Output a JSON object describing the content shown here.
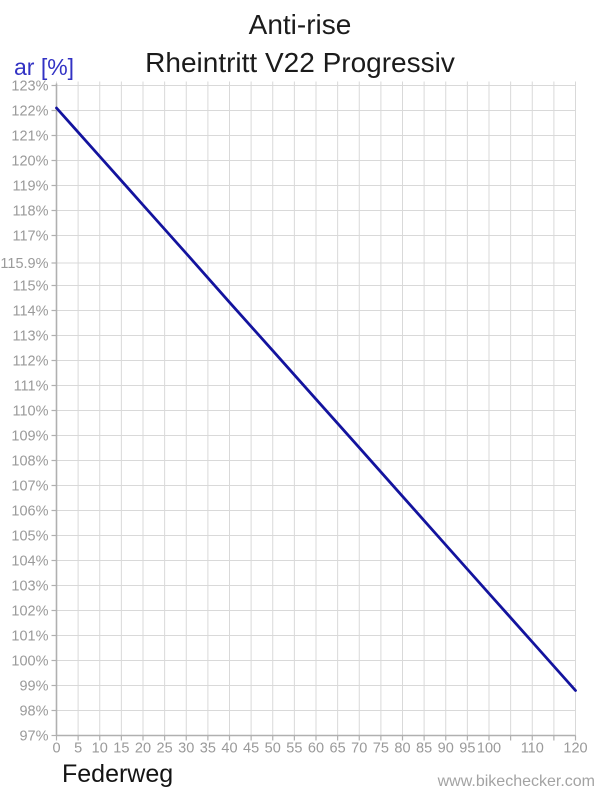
{
  "header": {
    "title": "Anti-rise",
    "subtitle": "Rheintritt V22 Progressiv",
    "y_axis_unit": "ar [%]"
  },
  "footer": {
    "x_axis_name": "Federweg",
    "watermark": "www.bikechecker.com"
  },
  "colors": {
    "line": "#13139e",
    "y_unit_text": "#3232c4",
    "grid": "#d9d9d9",
    "axis": "#b0b0b0",
    "tick_text": "#9a9a9a",
    "title_text": "#1b1b1b",
    "watermark_text": "#a3a3a3"
  },
  "chart_data": {
    "type": "line",
    "title": "Anti-rise",
    "subtitle": "Rheintritt V22 Progressiv",
    "xlabel": "Federweg",
    "ylabel": "ar [%]",
    "xlim": [
      0,
      120
    ],
    "ylim": [
      97,
      123
    ],
    "grid": true,
    "legend": "none",
    "x_ticks": [
      {
        "v": 0,
        "label": "0"
      },
      {
        "v": 5,
        "label": "5"
      },
      {
        "v": 10,
        "label": "10"
      },
      {
        "v": 15,
        "label": "15"
      },
      {
        "v": 20,
        "label": "20"
      },
      {
        "v": 25,
        "label": "25"
      },
      {
        "v": 30,
        "label": "30"
      },
      {
        "v": 35,
        "label": "35"
      },
      {
        "v": 40,
        "label": "40"
      },
      {
        "v": 45,
        "label": "45"
      },
      {
        "v": 50,
        "label": "50"
      },
      {
        "v": 55,
        "label": "55"
      },
      {
        "v": 60,
        "label": "60"
      },
      {
        "v": 65,
        "label": "65"
      },
      {
        "v": 70,
        "label": "70"
      },
      {
        "v": 75,
        "label": "75"
      },
      {
        "v": 80,
        "label": "80"
      },
      {
        "v": 85,
        "label": "85"
      },
      {
        "v": 90,
        "label": "90"
      },
      {
        "v": 95,
        "label": "95"
      },
      {
        "v": 100,
        "label": "100"
      },
      {
        "v": 105,
        "label": ""
      },
      {
        "v": 110,
        "label": "110"
      },
      {
        "v": 115,
        "label": ""
      },
      {
        "v": 120,
        "label": "120"
      }
    ],
    "y_ticks": [
      {
        "v": 123,
        "label": "123%"
      },
      {
        "v": 122,
        "label": "122%"
      },
      {
        "v": 121,
        "label": "121%"
      },
      {
        "v": 120,
        "label": "120%"
      },
      {
        "v": 119,
        "label": "119%"
      },
      {
        "v": 118,
        "label": "118%"
      },
      {
        "v": 117,
        "label": "117%"
      },
      {
        "v": 115.9,
        "label": "115.9%"
      },
      {
        "v": 115,
        "label": "115%"
      },
      {
        "v": 114,
        "label": "114%"
      },
      {
        "v": 113,
        "label": "113%"
      },
      {
        "v": 112,
        "label": "112%"
      },
      {
        "v": 111,
        "label": "111%"
      },
      {
        "v": 110,
        "label": "110%"
      },
      {
        "v": 109,
        "label": "109%"
      },
      {
        "v": 108,
        "label": "108%"
      },
      {
        "v": 107,
        "label": "107%"
      },
      {
        "v": 106,
        "label": "106%"
      },
      {
        "v": 105,
        "label": "105%"
      },
      {
        "v": 104,
        "label": "104%"
      },
      {
        "v": 103,
        "label": "103%"
      },
      {
        "v": 102,
        "label": "102%"
      },
      {
        "v": 101,
        "label": "101%"
      },
      {
        "v": 100,
        "label": "100%"
      },
      {
        "v": 99,
        "label": "99%"
      },
      {
        "v": 98,
        "label": "98%"
      },
      {
        "v": 97,
        "label": "97%"
      }
    ],
    "series": [
      {
        "name": "Anti-rise Rheintritt V22 Progressiv",
        "color": "#13139e",
        "x": [
          0,
          10,
          20,
          30,
          40,
          50,
          60,
          70,
          80,
          90,
          100,
          110,
          120
        ],
        "y": [
          122.1,
          120.16,
          118.22,
          116.28,
          114.33,
          112.39,
          110.45,
          108.51,
          106.57,
          104.62,
          102.68,
          100.74,
          98.8
        ]
      }
    ]
  }
}
